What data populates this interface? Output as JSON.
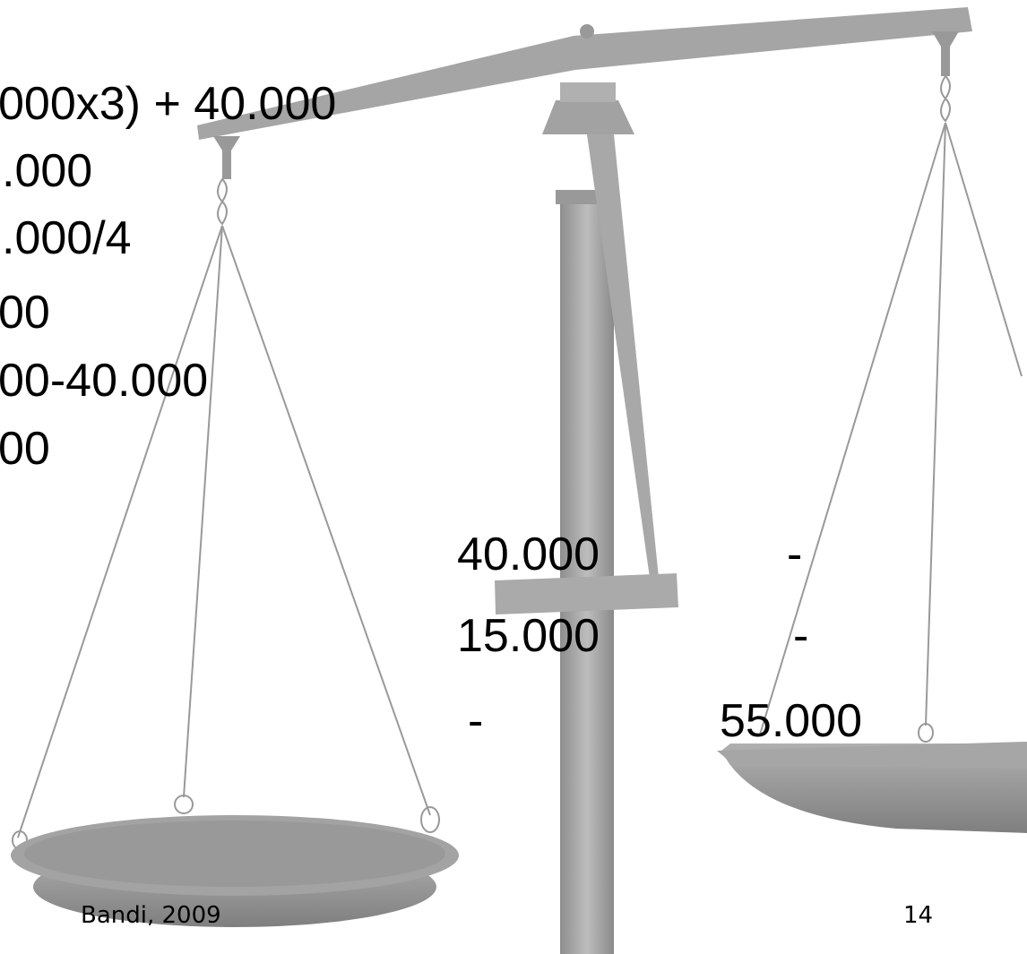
{
  "left_text": {
    "lines": [
      "000x3) + 40.000",
      ".000",
      ".000/4",
      "00",
      "00-40.000",
      "00"
    ]
  },
  "table": {
    "rows": [
      [
        "40.000",
        "-"
      ],
      [
        "15.000",
        "-"
      ],
      [
        "-",
        "55.000"
      ]
    ]
  },
  "footer": {
    "author": "Bandi, 2009",
    "page": "14"
  }
}
